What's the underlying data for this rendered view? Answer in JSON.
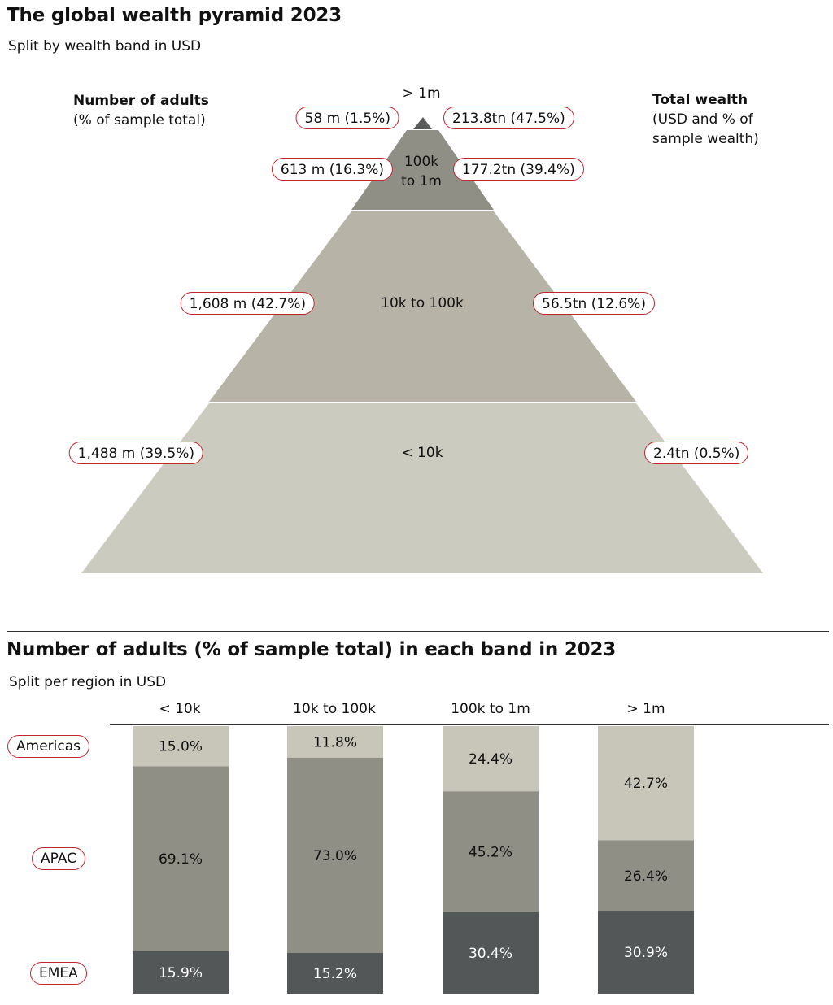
{
  "pyramid": {
    "title": "The global wealth pyramid 2023",
    "subtitle": "Split by wealth band in USD",
    "left_heading": "Number of adults",
    "left_subheading": "(% of sample total)",
    "right_heading": "Total wealth",
    "right_subheading_1": "(USD and % of",
    "right_subheading_2": "sample wealth)",
    "bands": [
      {
        "band_label": "> 1m",
        "adults_label": "58 m (1.5%)",
        "wealth_label": "213.8tn (47.5%)",
        "color": "#5a5c5b"
      },
      {
        "band_label_1": "100k",
        "band_label_2": "to 1m",
        "adults_label": "613 m (16.3%)",
        "wealth_label": "177.2tn (39.4%)",
        "color": "#8f8f86"
      },
      {
        "band_label": "10k to 100k",
        "adults_label": "1,608 m (42.7%)",
        "wealth_label": "56.5tn (12.6%)",
        "color": "#b7b4a7"
      },
      {
        "band_label": "< 10k",
        "adults_label": "1,488 m (39.5%)",
        "wealth_label": "2.4tn (0.5%)",
        "color": "#cccbbf"
      }
    ]
  },
  "chart_data": [
    {
      "type": "pyramid",
      "title": "The global wealth pyramid 2023",
      "subtitle": "Split by wealth band in USD",
      "categories": [
        "> 1m",
        "100k to 1m",
        "10k to 100k",
        "< 10k"
      ],
      "series": [
        {
          "name": "Number of adults",
          "unit": "m",
          "values": [
            58,
            613,
            1608,
            1488
          ],
          "percent": [
            1.5,
            16.3,
            42.7,
            39.5
          ]
        },
        {
          "name": "Total wealth",
          "unit": "tn",
          "values": [
            213.8,
            177.2,
            56.5,
            2.4
          ],
          "percent": [
            47.5,
            39.4,
            12.6,
            0.5
          ]
        }
      ]
    },
    {
      "type": "bar",
      "stacked": true,
      "title": "Number of adults (% of sample total) in each band in 2023",
      "subtitle": "Split per region in USD",
      "categories": [
        "< 10k",
        "10k to 100k",
        "100k to 1m",
        "> 1m"
      ],
      "series": [
        {
          "name": "Americas",
          "values": [
            15.0,
            11.8,
            24.4,
            42.7
          ],
          "labels": [
            "15.0%",
            "11.8%",
            "24.4%",
            "42.7%"
          ],
          "color": "#c7c6b9"
        },
        {
          "name": "APAC",
          "values": [
            69.1,
            73.0,
            45.2,
            26.4
          ],
          "labels": [
            "69.1%",
            "73.0%",
            "45.2%",
            "26.4%"
          ],
          "color": "#8f8f86"
        },
        {
          "name": "EMEA",
          "values": [
            15.9,
            15.2,
            30.4,
            30.9
          ],
          "labels": [
            "15.9%",
            "15.2%",
            "30.4%",
            "30.9%"
          ],
          "color": "#545757"
        }
      ],
      "ylim": [
        0,
        100
      ]
    }
  ]
}
